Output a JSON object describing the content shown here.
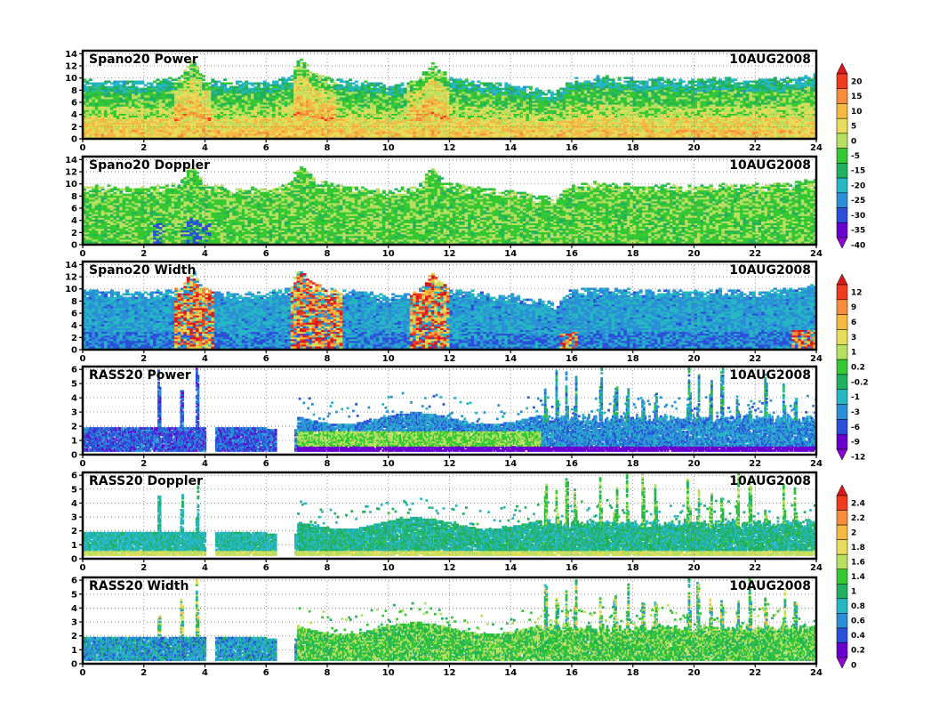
{
  "chart_data": [
    {
      "type": "heatmap",
      "title": "Spano20  Power",
      "date": "10AUG2008",
      "xlim": [
        0,
        24
      ],
      "ylim": [
        0,
        14.5
      ],
      "xticks": [
        "0",
        "2",
        "4",
        "6",
        "8",
        "10",
        "12",
        "14",
        "16",
        "18",
        "20",
        "22",
        "24"
      ],
      "yticks": [
        "0",
        "2",
        "4",
        "6",
        "8",
        "10",
        "12",
        "14"
      ],
      "grid": true,
      "field": "power",
      "top_profile": [
        [
          0,
          9.6
        ],
        [
          2,
          9.3
        ],
        [
          3.2,
          10
        ],
        [
          3.6,
          13
        ],
        [
          4,
          9.8
        ],
        [
          5,
          9.2
        ],
        [
          6,
          9.3
        ],
        [
          6.8,
          9.9
        ],
        [
          7.1,
          13.4
        ],
        [
          7.5,
          11
        ],
        [
          8,
          9.9
        ],
        [
          9,
          9.4
        ],
        [
          10,
          8.8
        ],
        [
          11,
          9.5
        ],
        [
          11.4,
          12.6
        ],
        [
          12,
          10
        ],
        [
          13,
          9.3
        ],
        [
          14,
          8.8
        ],
        [
          15,
          8
        ],
        [
          15.5,
          7.4
        ],
        [
          16,
          9.7
        ],
        [
          17,
          10.2
        ],
        [
          18,
          9.7
        ],
        [
          19,
          9.8
        ],
        [
          20,
          9.6
        ],
        [
          21,
          9.8
        ],
        [
          22,
          9.7
        ],
        [
          23,
          9.9
        ],
        [
          24,
          10.5
        ]
      ]
    },
    {
      "type": "heatmap",
      "title": "Spano20  Doppler",
      "date": "10AUG2008",
      "xlim": [
        0,
        24
      ],
      "ylim": [
        0,
        14.5
      ],
      "xticks": [
        "0",
        "2",
        "4",
        "6",
        "8",
        "10",
        "12",
        "14",
        "16",
        "18",
        "20",
        "22",
        "24"
      ],
      "yticks": [
        "0",
        "2",
        "4",
        "6",
        "8",
        "10",
        "12",
        "14"
      ],
      "grid": true,
      "field": "doppler",
      "top_profile": [
        [
          0,
          9.6
        ],
        [
          2,
          9.3
        ],
        [
          3.2,
          10
        ],
        [
          3.6,
          13
        ],
        [
          4,
          9.8
        ],
        [
          5,
          9.2
        ],
        [
          6,
          9.3
        ],
        [
          6.8,
          9.9
        ],
        [
          7.1,
          13.4
        ],
        [
          7.5,
          11
        ],
        [
          8,
          9.9
        ],
        [
          9,
          9.4
        ],
        [
          10,
          8.8
        ],
        [
          11,
          9.5
        ],
        [
          11.4,
          12.6
        ],
        [
          12,
          10
        ],
        [
          13,
          9.3
        ],
        [
          14,
          8.8
        ],
        [
          15,
          8
        ],
        [
          15.5,
          7.4
        ],
        [
          16,
          9.7
        ],
        [
          17,
          10.2
        ],
        [
          18,
          9.7
        ],
        [
          19,
          9.8
        ],
        [
          20,
          9.6
        ],
        [
          21,
          9.8
        ],
        [
          22,
          9.7
        ],
        [
          23,
          9.9
        ],
        [
          24,
          10.5
        ]
      ]
    },
    {
      "type": "heatmap",
      "title": "Spano20  Width",
      "date": "10AUG2008",
      "xlim": [
        0,
        24
      ],
      "ylim": [
        0,
        14.5
      ],
      "xticks": [
        "0",
        "2",
        "4",
        "6",
        "8",
        "10",
        "12",
        "14",
        "16",
        "18",
        "20",
        "22",
        "24"
      ],
      "yticks": [
        "0",
        "2",
        "4",
        "6",
        "8",
        "10",
        "12",
        "14"
      ],
      "grid": true,
      "field": "width",
      "top_profile": [
        [
          0,
          9.6
        ],
        [
          2,
          9.3
        ],
        [
          3.2,
          10
        ],
        [
          3.6,
          13
        ],
        [
          4,
          9.8
        ],
        [
          5,
          9.2
        ],
        [
          6,
          9.3
        ],
        [
          6.8,
          9.9
        ],
        [
          7.1,
          13.4
        ],
        [
          7.5,
          11
        ],
        [
          8,
          9.9
        ],
        [
          9,
          9.4
        ],
        [
          10,
          8.8
        ],
        [
          11,
          9.5
        ],
        [
          11.4,
          12.6
        ],
        [
          12,
          10
        ],
        [
          13,
          9.3
        ],
        [
          14,
          8.8
        ],
        [
          15,
          8
        ],
        [
          15.5,
          7.4
        ],
        [
          16,
          9.7
        ],
        [
          17,
          10.2
        ],
        [
          18,
          9.7
        ],
        [
          19,
          9.8
        ],
        [
          20,
          9.6
        ],
        [
          21,
          9.8
        ],
        [
          22,
          9.7
        ],
        [
          23,
          9.9
        ],
        [
          24,
          10.5
        ]
      ]
    },
    {
      "type": "heatmap",
      "title": "RASS20  Power",
      "date": "10AUG2008",
      "xlim": [
        0,
        24
      ],
      "ylim": [
        0,
        6.2
      ],
      "xticks": [
        "0",
        "2",
        "4",
        "6",
        "8",
        "10",
        "12",
        "14",
        "16",
        "18",
        "20",
        "22",
        "24"
      ],
      "yticks": [
        "0",
        "1",
        "2",
        "3",
        "4",
        "5",
        "6"
      ],
      "grid": true,
      "field": "rpower"
    },
    {
      "type": "heatmap",
      "title": "RASS20  Doppler",
      "date": "10AUG2008",
      "xlim": [
        0,
        24
      ],
      "ylim": [
        0,
        6.2
      ],
      "xticks": [
        "0",
        "2",
        "4",
        "6",
        "8",
        "10",
        "12",
        "14",
        "16",
        "18",
        "20",
        "22",
        "24"
      ],
      "yticks": [
        "0",
        "1",
        "2",
        "3",
        "4",
        "5",
        "6"
      ],
      "grid": true,
      "field": "rdoppler"
    },
    {
      "type": "heatmap",
      "title": "RASS20  Width",
      "date": "10AUG2008",
      "xlim": [
        0,
        24
      ],
      "ylim": [
        0,
        6.2
      ],
      "xticks": [
        "0",
        "2",
        "4",
        "6",
        "8",
        "10",
        "12",
        "14",
        "16",
        "18",
        "20",
        "22",
        "24"
      ],
      "yticks": [
        "0",
        "1",
        "2",
        "3",
        "4",
        "5",
        "6"
      ],
      "grid": true,
      "field": "rwidth"
    }
  ],
  "colorbars": [
    {
      "labels": [
        "20",
        "15",
        "10",
        "5",
        "0",
        "-5",
        "-15",
        "-20",
        "-25",
        "-30",
        "-35",
        "-40"
      ],
      "colors": [
        "#d7191c",
        "#f03b20",
        "#f78c3c",
        "#f5b942",
        "#e8dc5a",
        "#b8e060",
        "#34c832",
        "#20b060",
        "#26b7c4",
        "#2a8fd6",
        "#2a4fd8",
        "#6a00cf",
        "#8a00cf"
      ]
    },
    {
      "labels": [
        "12",
        "9",
        "6",
        "3",
        "1",
        "0.2",
        "-0.2",
        "-1",
        "-3",
        "-6",
        "-9",
        "-12"
      ],
      "colors": [
        "#d7191c",
        "#f03b20",
        "#f78c3c",
        "#f5b942",
        "#e8dc5a",
        "#b8e060",
        "#34c832",
        "#20b060",
        "#26b7c4",
        "#2a8fd6",
        "#2a4fd8",
        "#6a00cf",
        "#8a00cf"
      ]
    },
    {
      "labels": [
        "2.4",
        "2.2",
        "2",
        "1.8",
        "1.6",
        "1.4",
        "1",
        "0.8",
        "0.6",
        "0.4",
        "0.2",
        "0"
      ],
      "colors": [
        "#d7191c",
        "#f03b20",
        "#f78c3c",
        "#f5b942",
        "#e8dc5a",
        "#b8e060",
        "#34c832",
        "#20b060",
        "#26b7c4",
        "#2a8fd6",
        "#2a4fd8",
        "#6a00cf",
        "#8a00cf"
      ]
    }
  ]
}
